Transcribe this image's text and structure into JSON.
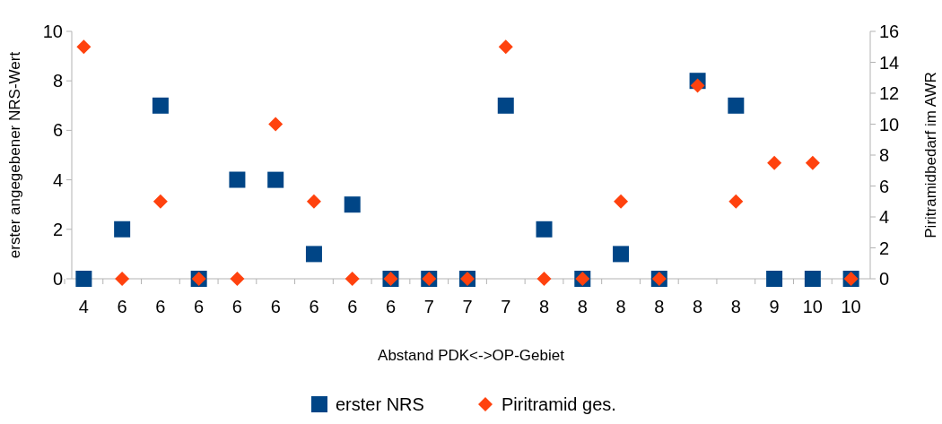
{
  "chart_data": {
    "type": "scatter",
    "xlabel": "Abstand PDK<->OP-Gebiet",
    "ylabel": "erster angegebener NRS-Wert",
    "y2label": "Piritramidbedarf im AWR",
    "categories": [
      "4",
      "6",
      "6",
      "6",
      "6",
      "6",
      "6",
      "6",
      "6",
      "7",
      "7",
      "7",
      "8",
      "8",
      "8",
      "8",
      "8",
      "8",
      "9",
      "10",
      "10"
    ],
    "series": [
      {
        "name": "erster NRS",
        "color": "#004586",
        "marker": "square",
        "values": [
          0,
          2,
          7,
          0,
          4,
          4,
          1,
          3,
          0,
          0,
          0,
          7,
          2,
          0,
          1,
          0,
          8,
          7,
          0,
          0,
          0
        ]
      },
      {
        "name": "Piritramid ges.",
        "color": "#ff420e",
        "marker": "diamond",
        "axis": "y2",
        "values": [
          15,
          0,
          5,
          0,
          0,
          10,
          5,
          0,
          0,
          0,
          0,
          15,
          0,
          0,
          5,
          0,
          12.5,
          5,
          7.5,
          7.5,
          0
        ]
      }
    ],
    "ylim": [
      0,
      10
    ],
    "yticks": [
      0,
      2,
      4,
      6,
      8,
      10
    ],
    "y2lim": [
      0,
      16
    ],
    "y2ticks": [
      0,
      2,
      4,
      6,
      8,
      10,
      12,
      14,
      16
    ],
    "grid": false,
    "legend": "bottom"
  }
}
